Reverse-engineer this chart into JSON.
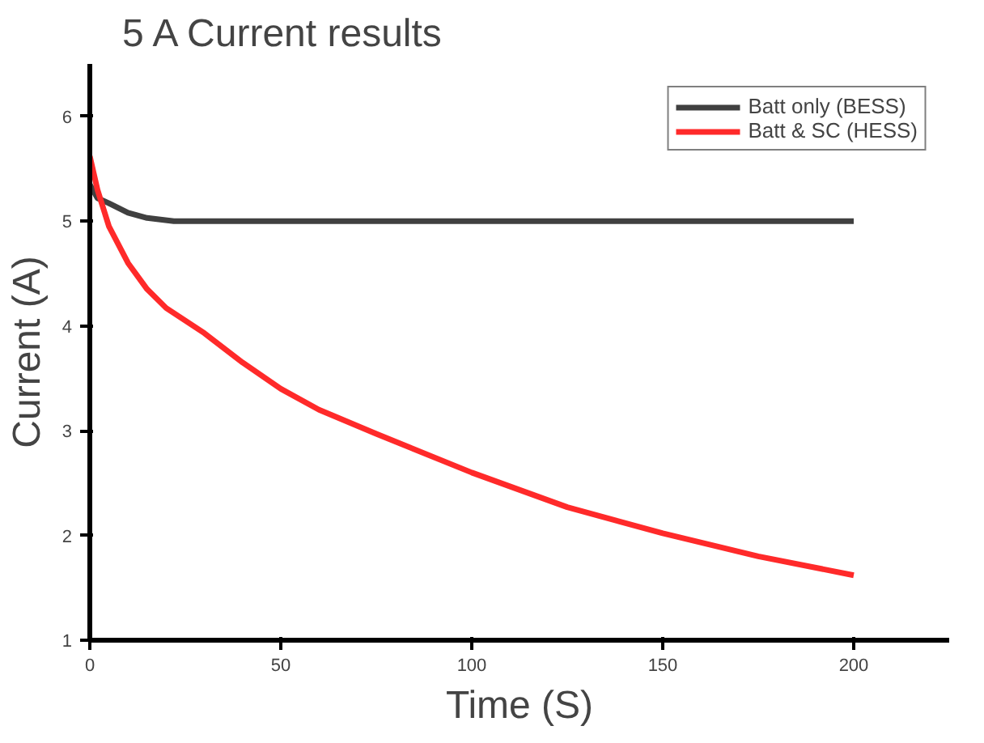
{
  "chart_data": {
    "type": "line",
    "title": "5 A Current results",
    "xlabel": "Time (S)",
    "ylabel": "Current (A)",
    "xlim": [
      0,
      225
    ],
    "ylim": [
      1,
      6.5
    ],
    "xticks": [
      0,
      50,
      100,
      150,
      200
    ],
    "yticks": [
      1,
      2,
      3,
      4,
      5,
      6
    ],
    "grid": false,
    "legend": "top right",
    "marker": "none",
    "line_style": "solid",
    "series": [
      {
        "name": "Batt only (BESS)",
        "color": "#404040",
        "x": [
          0,
          2,
          5,
          10,
          15,
          22,
          50,
          100,
          150,
          200
        ],
        "values": [
          5.35,
          5.22,
          5.17,
          5.08,
          5.03,
          5.0,
          5.0,
          5.0,
          5.0,
          5.0
        ]
      },
      {
        "name": "Batt & SC (HESS)",
        "color": "#ff2a2a",
        "x": [
          0,
          2,
          5,
          10,
          15,
          20,
          30,
          40,
          50,
          60,
          75,
          100,
          125,
          150,
          175,
          200
        ],
        "values": [
          5.62,
          5.3,
          4.95,
          4.6,
          4.35,
          4.17,
          3.93,
          3.65,
          3.4,
          3.2,
          2.97,
          2.6,
          2.27,
          2.02,
          1.8,
          1.62
        ]
      }
    ]
  }
}
